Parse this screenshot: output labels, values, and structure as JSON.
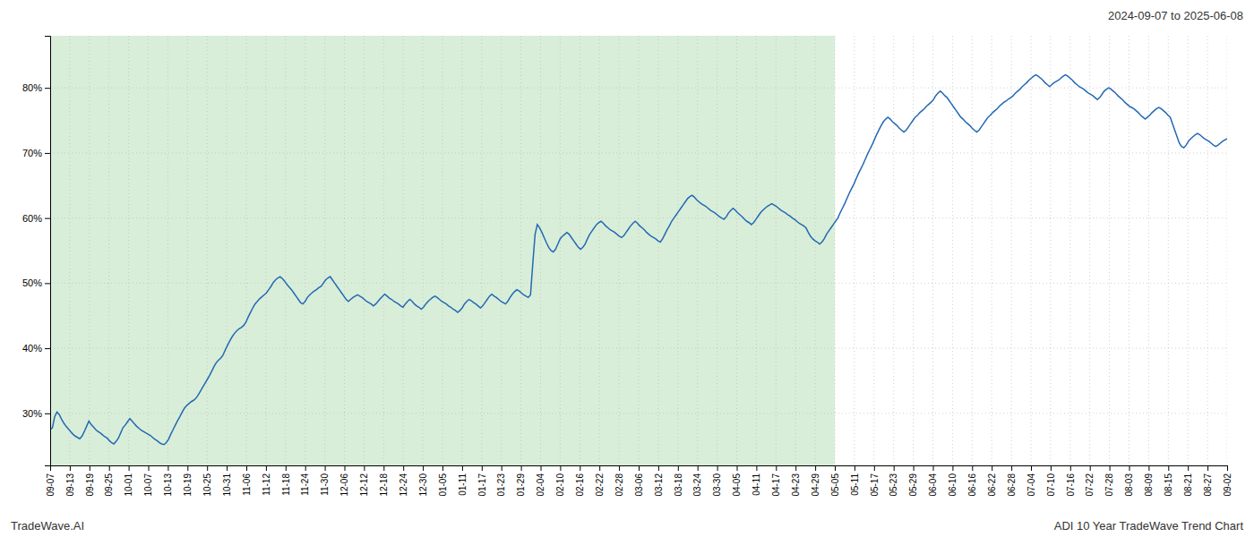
{
  "chart_data": {
    "type": "line",
    "title": "2024-09-07 to 2025-06-08",
    "annotations": [
      "TradeWave.AI",
      "ADI 10 Year TradeWave Trend Chart"
    ],
    "color": "#2468b4",
    "grid": true,
    "ylim": [
      22,
      88
    ],
    "yticks": [
      {
        "value": 30,
        "label": "30%"
      },
      {
        "value": 40,
        "label": "40%"
      },
      {
        "value": 50,
        "label": "50%"
      },
      {
        "value": 60,
        "label": "60%"
      },
      {
        "value": 70,
        "label": "70%"
      },
      {
        "value": 80,
        "label": "80%"
      }
    ],
    "xlim": [
      0,
      60
    ],
    "xticks": [
      {
        "value": 0,
        "label": "09-07"
      },
      {
        "value": 1,
        "label": "09-13"
      },
      {
        "value": 2,
        "label": "09-19"
      },
      {
        "value": 3,
        "label": "09-25"
      },
      {
        "value": 4,
        "label": "10-01"
      },
      {
        "value": 5,
        "label": "10-07"
      },
      {
        "value": 6,
        "label": "10-13"
      },
      {
        "value": 7,
        "label": "10-19"
      },
      {
        "value": 8,
        "label": "10-25"
      },
      {
        "value": 9,
        "label": "10-31"
      },
      {
        "value": 10,
        "label": "11-06"
      },
      {
        "value": 11,
        "label": "11-12"
      },
      {
        "value": 12,
        "label": "11-18"
      },
      {
        "value": 13,
        "label": "11-24"
      },
      {
        "value": 14,
        "label": "11-30"
      },
      {
        "value": 15,
        "label": "12-06"
      },
      {
        "value": 16,
        "label": "12-12"
      },
      {
        "value": 17,
        "label": "12-18"
      },
      {
        "value": 18,
        "label": "12-24"
      },
      {
        "value": 19,
        "label": "12-30"
      },
      {
        "value": 20,
        "label": "01-05"
      },
      {
        "value": 21,
        "label": "01-11"
      },
      {
        "value": 22,
        "label": "01-17"
      },
      {
        "value": 23,
        "label": "01-23"
      },
      {
        "value": 24,
        "label": "01-29"
      },
      {
        "value": 25,
        "label": "02-04"
      },
      {
        "value": 26,
        "label": "02-10"
      },
      {
        "value": 27,
        "label": "02-16"
      },
      {
        "value": 28,
        "label": "02-22"
      },
      {
        "value": 29,
        "label": "02-28"
      },
      {
        "value": 30,
        "label": "03-06"
      },
      {
        "value": 31,
        "label": "03-12"
      },
      {
        "value": 32,
        "label": "03-18"
      },
      {
        "value": 33,
        "label": "03-24"
      },
      {
        "value": 34,
        "label": "03-30"
      },
      {
        "value": 35,
        "label": "04-05"
      },
      {
        "value": 36,
        "label": "04-11"
      },
      {
        "value": 37,
        "label": "04-17"
      },
      {
        "value": 38,
        "label": "04-23"
      },
      {
        "value": 39,
        "label": "04-29"
      },
      {
        "value": 40,
        "label": "05-05"
      },
      {
        "value": 41,
        "label": "05-11"
      },
      {
        "value": 42,
        "label": "05-17"
      },
      {
        "value": 43,
        "label": "05-23"
      },
      {
        "value": 44,
        "label": "05-29"
      },
      {
        "value": 45,
        "label": "06-04"
      },
      {
        "value": 46,
        "label": "06-10"
      },
      {
        "value": 47,
        "label": "06-16"
      },
      {
        "value": 48,
        "label": "06-22"
      },
      {
        "value": 49,
        "label": "06-28"
      },
      {
        "value": 50,
        "label": "07-04"
      },
      {
        "value": 51,
        "label": "07-10"
      },
      {
        "value": 52,
        "label": "07-16"
      },
      {
        "value": 53,
        "label": "07-22"
      },
      {
        "value": 54,
        "label": "07-28"
      },
      {
        "value": 55,
        "label": "08-03"
      },
      {
        "value": 56,
        "label": "08-09"
      },
      {
        "value": 57,
        "label": "08-15"
      },
      {
        "value": 58,
        "label": "08-21"
      },
      {
        "value": 59,
        "label": "08-27"
      },
      {
        "value": 60,
        "label": "09-02"
      }
    ],
    "shaded_span": {
      "start": 0,
      "end": 40,
      "color": "#d8eed8"
    },
    "values": [
      27.5,
      27.8,
      29.5,
      30.2,
      29.8,
      29.1,
      28.5,
      28.0,
      27.6,
      27.2,
      26.8,
      26.5,
      26.3,
      26.1,
      26.5,
      27.2,
      28.0,
      28.8,
      28.3,
      27.9,
      27.5,
      27.2,
      27.0,
      26.7,
      26.4,
      26.2,
      25.8,
      25.5,
      25.3,
      25.7,
      26.2,
      27.0,
      27.8,
      28.2,
      28.7,
      29.2,
      28.8,
      28.4,
      28.0,
      27.7,
      27.4,
      27.2,
      27.0,
      26.8,
      26.6,
      26.3,
      26.0,
      25.8,
      25.5,
      25.3,
      25.2,
      25.5,
      26.0,
      26.8,
      27.5,
      28.2,
      28.9,
      29.5,
      30.2,
      30.8,
      31.2,
      31.5,
      31.8,
      32.0,
      32.3,
      32.8,
      33.4,
      34.0,
      34.6,
      35.2,
      35.8,
      36.5,
      37.2,
      37.8,
      38.2,
      38.5,
      39.0,
      39.8,
      40.5,
      41.2,
      41.8,
      42.3,
      42.7,
      43.0,
      43.2,
      43.5,
      44.0,
      44.8,
      45.5,
      46.2,
      46.8,
      47.2,
      47.6,
      47.9,
      48.2,
      48.5,
      49.0,
      49.5,
      50.1,
      50.5,
      50.8,
      51.0,
      50.7,
      50.3,
      49.8,
      49.4,
      49.0,
      48.5,
      48.0,
      47.5,
      47.0,
      46.8,
      47.2,
      47.8,
      48.2,
      48.5,
      48.8,
      49.0,
      49.3,
      49.5,
      50.0,
      50.5,
      50.8,
      51.0,
      50.5,
      50.0,
      49.5,
      49.0,
      48.5,
      48.0,
      47.5,
      47.2,
      47.5,
      47.8,
      48.0,
      48.2,
      48.0,
      47.8,
      47.5,
      47.2,
      47.0,
      46.8,
      46.5,
      46.8,
      47.2,
      47.6,
      48.0,
      48.3,
      48.0,
      47.7,
      47.5,
      47.2,
      47.0,
      46.8,
      46.5,
      46.3,
      46.8,
      47.2,
      47.5,
      47.2,
      46.8,
      46.5,
      46.3,
      46.0,
      46.3,
      46.8,
      47.2,
      47.5,
      47.8,
      48.0,
      47.8,
      47.5,
      47.2,
      47.0,
      46.8,
      46.5,
      46.3,
      46.0,
      45.8,
      45.5,
      45.8,
      46.2,
      46.8,
      47.2,
      47.5,
      47.3,
      47.0,
      46.8,
      46.5,
      46.2,
      46.5,
      47.0,
      47.5,
      48.0,
      48.3,
      48.0,
      47.8,
      47.5,
      47.2,
      47.0,
      46.8,
      47.2,
      47.8,
      48.3,
      48.7,
      49.0,
      48.8,
      48.5,
      48.2,
      48.0,
      47.8,
      48.2,
      53.0,
      57.5,
      59.0,
      58.5,
      57.8,
      57.0,
      56.2,
      55.5,
      55.0,
      54.8,
      55.2,
      56.0,
      56.8,
      57.2,
      57.5,
      57.8,
      57.5,
      57.0,
      56.5,
      56.0,
      55.5,
      55.2,
      55.5,
      56.0,
      56.8,
      57.5,
      58.0,
      58.5,
      59.0,
      59.3,
      59.5,
      59.2,
      58.8,
      58.5,
      58.2,
      58.0,
      57.8,
      57.5,
      57.2,
      57.0,
      57.3,
      57.8,
      58.3,
      58.8,
      59.2,
      59.5,
      59.2,
      58.8,
      58.5,
      58.2,
      57.8,
      57.5,
      57.2,
      57.0,
      56.8,
      56.5,
      56.3,
      56.8,
      57.5,
      58.2,
      58.8,
      59.5,
      60.0,
      60.5,
      61.0,
      61.5,
      62.0,
      62.5,
      63.0,
      63.3,
      63.5,
      63.2,
      62.8,
      62.5,
      62.2,
      62.0,
      61.8,
      61.5,
      61.2,
      61.0,
      60.8,
      60.5,
      60.2,
      60.0,
      59.8,
      60.2,
      60.8,
      61.2,
      61.5,
      61.2,
      60.8,
      60.5,
      60.2,
      59.8,
      59.5,
      59.3,
      59.0,
      59.3,
      59.8,
      60.3,
      60.8,
      61.2,
      61.5,
      61.8,
      62.0,
      62.2,
      62.0,
      61.8,
      61.5,
      61.2,
      61.0,
      60.8,
      60.5,
      60.3,
      60.0,
      59.8,
      59.5,
      59.2,
      59.0,
      58.8,
      58.5,
      57.8,
      57.2,
      56.8,
      56.5,
      56.3,
      56.0,
      56.3,
      56.8,
      57.5,
      58.0,
      58.5,
      59.0,
      59.5,
      60.0,
      60.8,
      61.5,
      62.2,
      63.0,
      63.8,
      64.5,
      65.2,
      66.0,
      66.8,
      67.5,
      68.2,
      69.0,
      69.8,
      70.5,
      71.2,
      72.0,
      72.8,
      73.5,
      74.2,
      74.8,
      75.2,
      75.5,
      75.2,
      74.8,
      74.5,
      74.2,
      73.8,
      73.5,
      73.2,
      73.5,
      74.0,
      74.5,
      75.0,
      75.5,
      75.8,
      76.2,
      76.5,
      76.8,
      77.2,
      77.5,
      77.8,
      78.2,
      78.8,
      79.2,
      79.5,
      79.2,
      78.8,
      78.5,
      78.0,
      77.5,
      77.0,
      76.5,
      76.0,
      75.5,
      75.2,
      74.8,
      74.5,
      74.2,
      73.8,
      73.5,
      73.2,
      73.5,
      74.0,
      74.5,
      75.0,
      75.5,
      75.8,
      76.2,
      76.5,
      76.8,
      77.2,
      77.5,
      77.8,
      78.0,
      78.3,
      78.5,
      78.8,
      79.2,
      79.5,
      79.8,
      80.2,
      80.5,
      80.8,
      81.2,
      81.5,
      81.8,
      82.0,
      81.8,
      81.5,
      81.2,
      80.8,
      80.5,
      80.2,
      80.5,
      80.8,
      81.0,
      81.2,
      81.5,
      81.8,
      82.0,
      81.8,
      81.5,
      81.2,
      80.8,
      80.5,
      80.2,
      80.0,
      79.8,
      79.5,
      79.2,
      79.0,
      78.8,
      78.5,
      78.2,
      78.5,
      79.0,
      79.5,
      79.8,
      80.0,
      79.8,
      79.5,
      79.2,
      78.8,
      78.5,
      78.2,
      77.8,
      77.5,
      77.2,
      77.0,
      76.8,
      76.5,
      76.2,
      75.8,
      75.5,
      75.2,
      75.5,
      75.8,
      76.2,
      76.5,
      76.8,
      77.0,
      76.8,
      76.5,
      76.2,
      75.8,
      75.5,
      74.5,
      73.5,
      72.5,
      71.5,
      71.0,
      70.8,
      71.2,
      71.8,
      72.2,
      72.5,
      72.8,
      73.0,
      72.8,
      72.5,
      72.2,
      72.0,
      71.8,
      71.5,
      71.2,
      71.0,
      71.2,
      71.5,
      71.8,
      72.0,
      72.2
    ]
  }
}
